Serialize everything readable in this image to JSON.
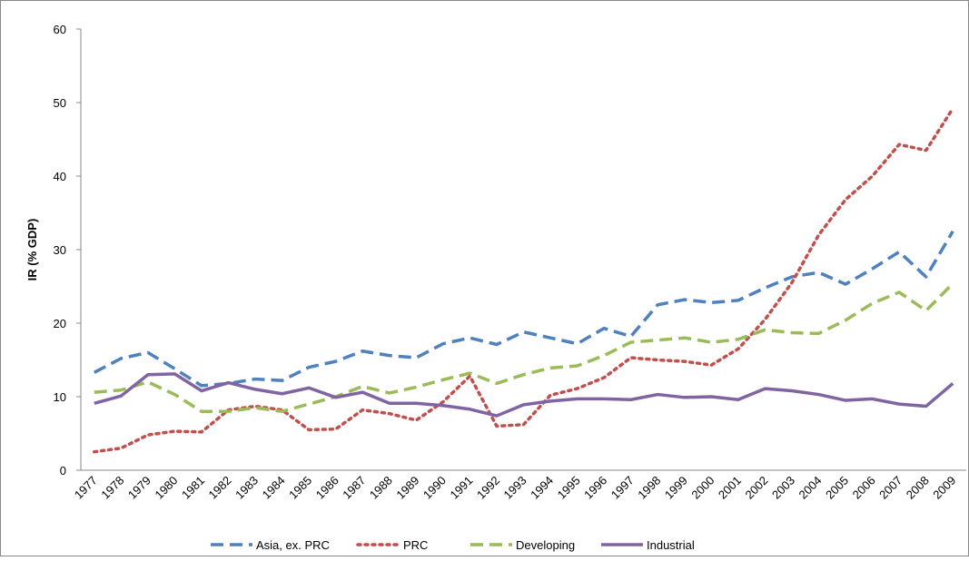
{
  "chart_data": {
    "type": "line",
    "y_label": "IR (% GDP)",
    "categories": [
      "1977",
      "1978",
      "1979",
      "1980",
      "1981",
      "1982",
      "1983",
      "1984",
      "1985",
      "1986",
      "1987",
      "1988",
      "1989",
      "1990",
      "1991",
      "1992",
      "1993",
      "1994",
      "1995",
      "1996",
      "1997",
      "1998",
      "1999",
      "2000",
      "2001",
      "2002",
      "2003",
      "2004",
      "2005",
      "2006",
      "2007",
      "2008",
      "2009"
    ],
    "ylim": [
      0,
      60
    ],
    "yticks": [
      0,
      10,
      20,
      30,
      40,
      50,
      60
    ],
    "legend": "bottom",
    "series": [
      {
        "name": "Asia, ex. PRC",
        "color": "#4f81bd",
        "style": "dashed",
        "values": [
          13.3,
          15.2,
          16.0,
          13.8,
          11.5,
          11.8,
          12.4,
          12.2,
          14.0,
          14.8,
          16.2,
          15.6,
          15.3,
          17.2,
          18.0,
          17.1,
          18.8,
          18.0,
          17.2,
          19.3,
          18.2,
          22.5,
          23.2,
          22.8,
          23.1,
          24.8,
          26.3,
          26.9,
          25.3,
          27.4,
          29.7,
          26.3,
          32.5
        ]
      },
      {
        "name": "PRC",
        "color": "#c0504d",
        "style": "dotted",
        "values": [
          2.5,
          3.0,
          4.8,
          5.3,
          5.2,
          8.2,
          8.7,
          8.2,
          5.5,
          5.6,
          8.2,
          7.7,
          6.8,
          9.3,
          12.8,
          6.0,
          6.2,
          10.2,
          11.1,
          12.6,
          15.3,
          15.0,
          14.8,
          14.3,
          16.5,
          20.5,
          25.5,
          32.0,
          36.8,
          40.0,
          44.3,
          43.5,
          49.2
        ]
      },
      {
        "name": "Developing",
        "color": "#9bbb59",
        "style": "dashed",
        "values": [
          10.6,
          10.9,
          12.0,
          10.3,
          8.0,
          8.0,
          8.5,
          8.0,
          9.0,
          10.0,
          11.4,
          10.5,
          11.3,
          12.3,
          13.2,
          11.8,
          13.0,
          13.9,
          14.2,
          15.6,
          17.4,
          17.7,
          18.0,
          17.4,
          17.8,
          19.1,
          18.7,
          18.6,
          20.4,
          22.7,
          24.2,
          21.7,
          25.4
        ]
      },
      {
        "name": "Industrial",
        "color": "#8064a2",
        "style": "solid",
        "values": [
          9.1,
          10.1,
          13.0,
          13.1,
          10.8,
          11.9,
          11.0,
          10.4,
          11.2,
          9.9,
          10.6,
          9.1,
          9.1,
          8.8,
          8.3,
          7.4,
          8.9,
          9.4,
          9.7,
          9.7,
          9.6,
          10.3,
          9.9,
          10.0,
          9.6,
          11.1,
          10.8,
          10.3,
          9.5,
          9.7,
          9.0,
          8.7,
          11.8
        ]
      }
    ]
  }
}
